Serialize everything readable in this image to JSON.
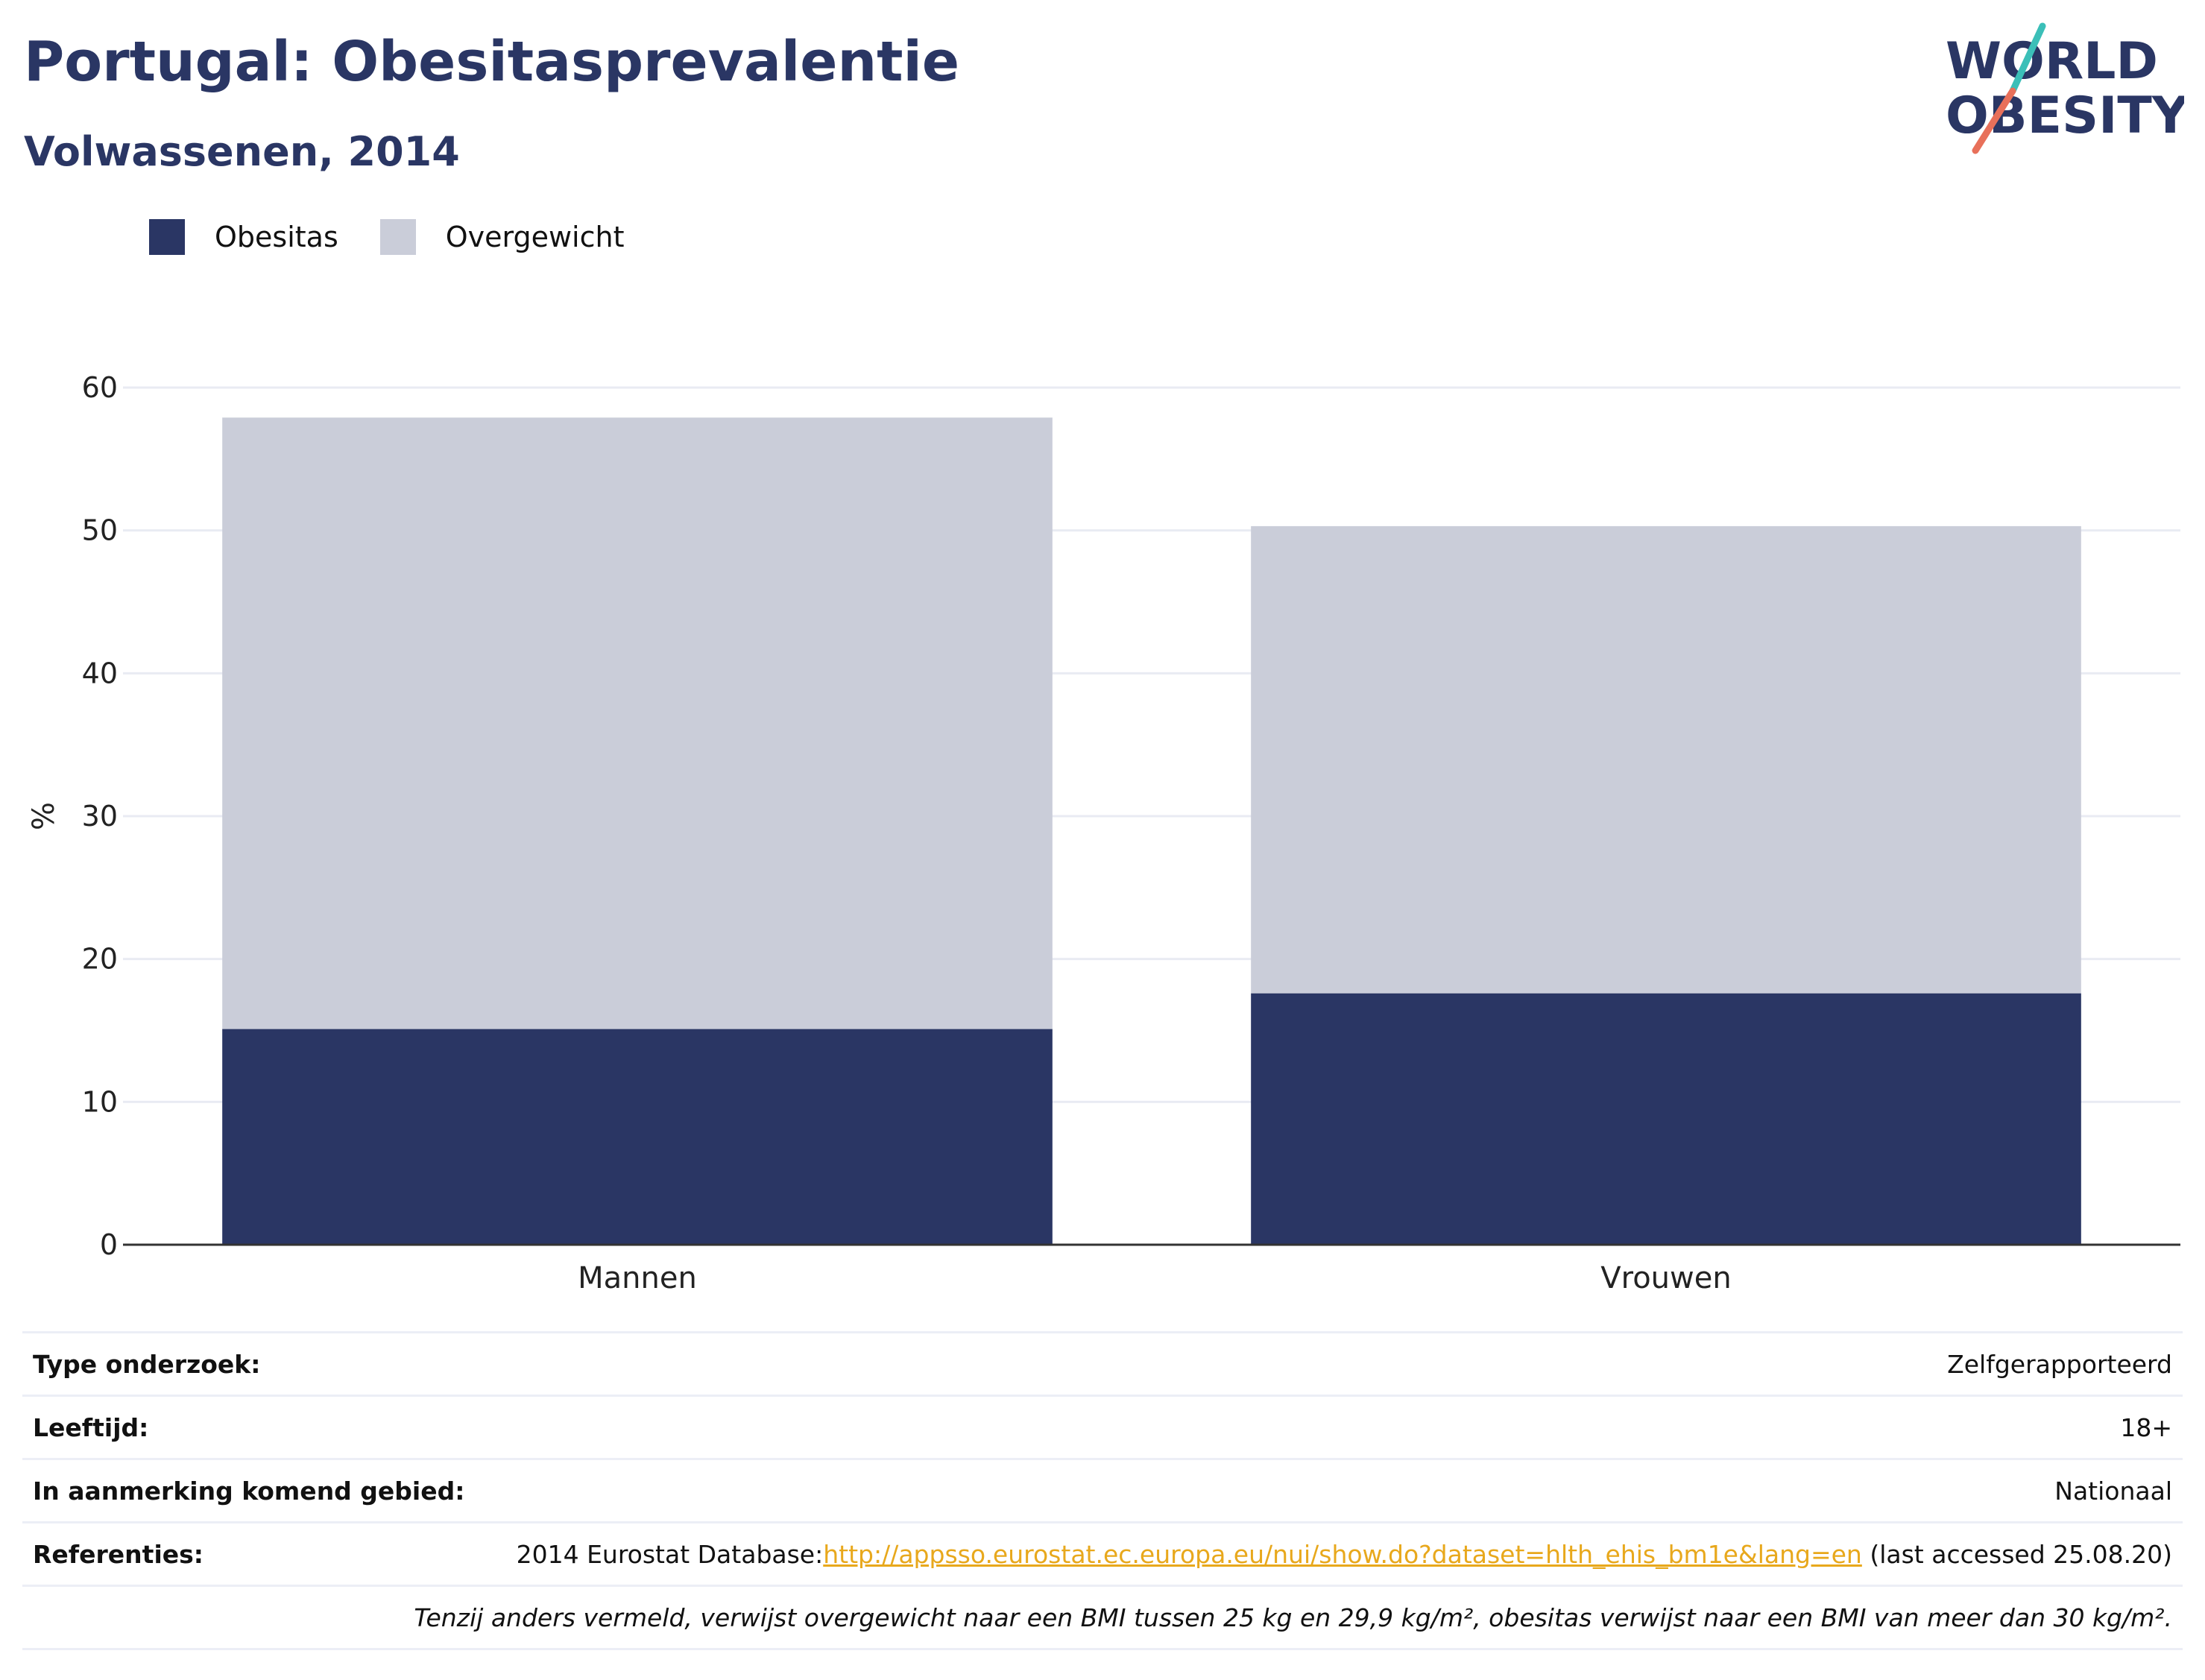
{
  "header": {
    "title": "Portugal: Obesitasprevalentie",
    "subtitle": "Volwassenen, 2014",
    "logo_text_line1": "WORLD",
    "logo_text_line2": "OBESITY"
  },
  "legend": [
    {
      "label": "Obesitas",
      "color": "#2a3664"
    },
    {
      "label": "Overgewicht",
      "color": "#cacdd9"
    }
  ],
  "chart_data": {
    "type": "bar",
    "stacked": true,
    "categories": [
      "Mannen",
      "Vrouwen"
    ],
    "series": [
      {
        "name": "Obesitas",
        "values": [
          15.1,
          17.6
        ],
        "color": "#2a3664"
      },
      {
        "name": "Overgewicht",
        "values": [
          42.8,
          32.7
        ],
        "color": "#cacdd9"
      }
    ],
    "ylabel": "%",
    "ylim": [
      0,
      60
    ],
    "yticks": [
      0,
      10,
      20,
      30,
      40,
      50,
      60
    ],
    "grid": true,
    "legend_position": "top-left"
  },
  "meta": {
    "survey_type_label": "Type onderzoek:",
    "survey_type_value": "Zelfgerapporteerd",
    "age_label": "Leeftijd:",
    "age_value": "18+",
    "area_label": "In aanmerking komend gebied:",
    "area_value": "Nationaal",
    "references_label": "Referenties:",
    "references_prefix": "2014 Eurostat Database:",
    "references_link": "http://appsso.eurostat.ec.europa.eu/nui/show.do?dataset=hlth_ehis_bm1e&lang=en",
    "references_suffix": " (last accessed 25.08.20)",
    "note": "Tenzij anders vermeld, verwijst overgewicht naar een BMI tussen 25 kg en 29,9 kg/m², obesitas verwijst naar een BMI van meer dan 30 kg/m²."
  }
}
